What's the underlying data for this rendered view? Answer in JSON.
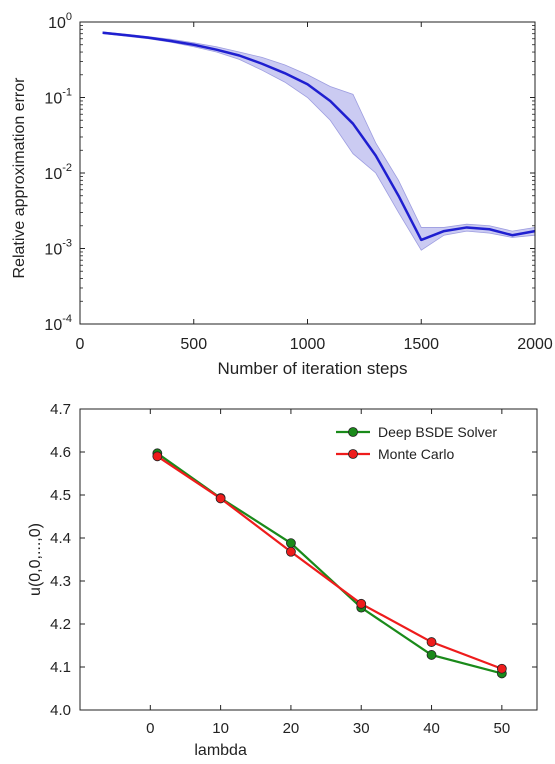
{
  "colors": {
    "blue_line": "#1f1fd0",
    "blue_band": "#b9b9ee",
    "green": "#1a8a1a",
    "red": "#ee1c1c",
    "axis": "#222222"
  },
  "chart_data": [
    {
      "type": "line",
      "xlabel": "Number of iteration steps",
      "ylabel": "Relative approximation error",
      "x_scale": "linear",
      "y_scale": "log",
      "xlim": [
        0,
        2000
      ],
      "ylim": [
        0.0001,
        1
      ],
      "x_ticks": [
        0,
        500,
        1000,
        1500,
        2000
      ],
      "x_tick_labels": [
        "0",
        "500",
        "1000",
        "1500",
        "2000"
      ],
      "y_ticks": [
        1,
        0.1,
        0.01,
        0.001,
        0.0001
      ],
      "y_tick_labels": [
        {
          "base": "10",
          "exp": "0"
        },
        {
          "base": "10",
          "exp": "-1"
        },
        {
          "base": "10",
          "exp": "-2"
        },
        {
          "base": "10",
          "exp": "-3"
        },
        {
          "base": "10",
          "exp": "-4"
        }
      ],
      "grid": false,
      "series": [
        {
          "x": [
            100,
            200,
            300,
            400,
            500,
            600,
            700,
            800,
            900,
            1000,
            1100,
            1200,
            1300,
            1400,
            1500,
            1600,
            1700,
            1800,
            1900,
            2000
          ],
          "mean": [
            0.72,
            0.67,
            0.62,
            0.56,
            0.5,
            0.43,
            0.36,
            0.28,
            0.21,
            0.15,
            0.09,
            0.045,
            0.017,
            0.005,
            0.0013,
            0.0017,
            0.0019,
            0.0018,
            0.0015,
            0.0017
          ],
          "lower": [
            0.7,
            0.65,
            0.6,
            0.54,
            0.47,
            0.4,
            0.32,
            0.23,
            0.16,
            0.1,
            0.05,
            0.018,
            0.01,
            0.003,
            0.00095,
            0.0015,
            0.0017,
            0.0016,
            0.0014,
            0.0015
          ],
          "upper": [
            0.74,
            0.69,
            0.64,
            0.59,
            0.53,
            0.47,
            0.4,
            0.34,
            0.27,
            0.2,
            0.14,
            0.11,
            0.025,
            0.008,
            0.0019,
            0.0019,
            0.0021,
            0.002,
            0.0017,
            0.0019
          ]
        }
      ]
    },
    {
      "type": "line",
      "xlabel": "lambda",
      "ylabel": "u(0,0,...,0)",
      "xlim": [
        -10,
        55
      ],
      "ylim": [
        4.0,
        4.7
      ],
      "x_ticks": [
        0,
        10,
        20,
        30,
        40,
        50
      ],
      "x_tick_labels": [
        "0",
        "10",
        "20",
        "30",
        "40",
        "50"
      ],
      "y_ticks": [
        4.0,
        4.1,
        4.2,
        4.3,
        4.4,
        4.5,
        4.6,
        4.7
      ],
      "y_tick_labels": [
        "4.0",
        "4.1",
        "4.2",
        "4.3",
        "4.4",
        "4.5",
        "4.6",
        "4.7"
      ],
      "grid": false,
      "legend_position": "top-right",
      "series": [
        {
          "name": "Deep BSDE Solver",
          "x": [
            1,
            10,
            20,
            30,
            40,
            50
          ],
          "values": [
            4.597,
            4.493,
            4.388,
            4.238,
            4.128,
            4.085
          ]
        },
        {
          "name": "Monte Carlo",
          "x": [
            1,
            10,
            20,
            30,
            40,
            50
          ],
          "values": [
            4.59,
            4.492,
            4.368,
            4.247,
            4.158,
            4.096
          ]
        }
      ]
    }
  ]
}
